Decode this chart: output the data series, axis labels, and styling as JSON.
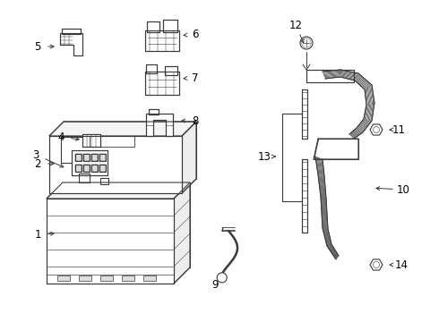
{
  "bg_color": "#ffffff",
  "line_color": "#3a3a3a",
  "label_color": "#000000",
  "figsize": [
    4.9,
    3.6
  ],
  "dpi": 100
}
